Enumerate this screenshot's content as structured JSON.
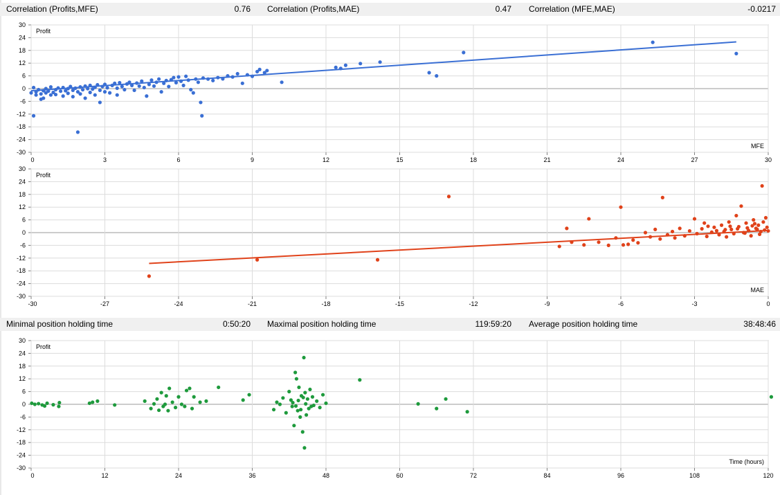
{
  "stats_top": [
    {
      "label": "Correlation (Profits,MFE)",
      "value": "0.76"
    },
    {
      "label": "Correlation (Profits,MAE)",
      "value": "0.47"
    },
    {
      "label": "Correlation (MFE,MAE)",
      "value": "-0.0217"
    }
  ],
  "stats_mid": [
    {
      "label": "Minimal position holding time",
      "value": "0:50:20"
    },
    {
      "label": "Maximal position holding time",
      "value": "119:59:20"
    },
    {
      "label": "Average position holding time",
      "value": "38:48:46"
    }
  ],
  "chart_data": [
    {
      "type": "scatter",
      "ylabel": "Profit",
      "xlabel": "MFE",
      "xlim": [
        0,
        30
      ],
      "ylim": [
        -30,
        30
      ],
      "xticks": [
        0,
        3,
        6,
        9,
        12,
        15,
        18,
        21,
        24,
        27,
        30
      ],
      "yticks": [
        30,
        24,
        18,
        12,
        6,
        0,
        -6,
        -12,
        -18,
        -24,
        -30
      ],
      "grid": true,
      "color": "#3a6fd4",
      "trendline": {
        "x1": 0,
        "y1": -1.0,
        "x2": 28.7,
        "y2": 22.0
      },
      "points": [
        [
          0.0,
          -2
        ],
        [
          0.1,
          -12.8
        ],
        [
          0.1,
          0.5
        ],
        [
          0.2,
          -1.5
        ],
        [
          0.2,
          -3
        ],
        [
          0.3,
          -0.5
        ],
        [
          0.4,
          -2.5
        ],
        [
          0.4,
          -5
        ],
        [
          0.5,
          -1
        ],
        [
          0.5,
          -4.5
        ],
        [
          0.6,
          0
        ],
        [
          0.6,
          -2
        ],
        [
          0.7,
          -1.2
        ],
        [
          0.8,
          -3
        ],
        [
          0.8,
          0.8
        ],
        [
          0.9,
          -1.8
        ],
        [
          1.0,
          -0.5
        ],
        [
          1.0,
          -2.8
        ],
        [
          1.1,
          0.3
        ],
        [
          1.2,
          -1.2
        ],
        [
          1.3,
          -3.5
        ],
        [
          1.3,
          0.5
        ],
        [
          1.4,
          -1
        ],
        [
          1.5,
          0
        ],
        [
          1.5,
          -2.2
        ],
        [
          1.6,
          1
        ],
        [
          1.7,
          -0.8
        ],
        [
          1.7,
          -3.8
        ],
        [
          1.8,
          0.2
        ],
        [
          1.9,
          -1.5
        ],
        [
          1.9,
          -20.5
        ],
        [
          2.0,
          0.8
        ],
        [
          2.0,
          -2.5
        ],
        [
          2.1,
          -0.5
        ],
        [
          2.2,
          1.2
        ],
        [
          2.2,
          -4.5
        ],
        [
          2.3,
          0
        ],
        [
          2.4,
          -1.8
        ],
        [
          2.4,
          1.5
        ],
        [
          2.5,
          -0.2
        ],
        [
          2.6,
          -3
        ],
        [
          2.6,
          0.6
        ],
        [
          2.7,
          1.8
        ],
        [
          2.8,
          -0.8
        ],
        [
          2.8,
          -6.5
        ],
        [
          2.9,
          1
        ],
        [
          3.0,
          -1.5
        ],
        [
          3.0,
          2
        ],
        [
          3.1,
          0.4
        ],
        [
          3.2,
          -2
        ],
        [
          3.3,
          1.5
        ],
        [
          3.4,
          2.5
        ],
        [
          3.5,
          0.2
        ],
        [
          3.5,
          -3
        ],
        [
          3.6,
          2.8
        ],
        [
          3.7,
          1
        ],
        [
          3.8,
          -0.5
        ],
        [
          3.9,
          2.2
        ],
        [
          4.0,
          3
        ],
        [
          4.1,
          1.5
        ],
        [
          4.2,
          -0.8
        ],
        [
          4.3,
          2.6
        ],
        [
          4.4,
          1.2
        ],
        [
          4.5,
          3.5
        ],
        [
          4.6,
          0.5
        ],
        [
          4.7,
          -3.5
        ],
        [
          4.8,
          2
        ],
        [
          4.9,
          4
        ],
        [
          5.0,
          1.2
        ],
        [
          5.1,
          3
        ],
        [
          5.2,
          4.5
        ],
        [
          5.3,
          -1.5
        ],
        [
          5.4,
          2.5
        ],
        [
          5.5,
          3.8
        ],
        [
          5.6,
          1
        ],
        [
          5.7,
          4.2
        ],
        [
          5.8,
          5.2
        ],
        [
          5.9,
          2.8
        ],
        [
          6.0,
          5.5
        ],
        [
          6.1,
          3.5
        ],
        [
          6.2,
          1.5
        ],
        [
          6.3,
          5.8
        ],
        [
          6.4,
          4
        ],
        [
          6.5,
          -0.5
        ],
        [
          6.6,
          -2
        ],
        [
          6.7,
          4.5
        ],
        [
          6.8,
          3
        ],
        [
          6.9,
          -6.5
        ],
        [
          6.95,
          -12.8
        ],
        [
          7.0,
          5
        ],
        [
          7.2,
          4.5
        ],
        [
          7.4,
          3.8
        ],
        [
          7.6,
          5.2
        ],
        [
          7.8,
          4.6
        ],
        [
          8.0,
          6
        ],
        [
          8.2,
          5.5
        ],
        [
          8.4,
          7
        ],
        [
          8.6,
          2.5
        ],
        [
          8.8,
          6.5
        ],
        [
          9.0,
          5.8
        ],
        [
          9.2,
          8
        ],
        [
          9.3,
          9
        ],
        [
          9.5,
          7.5
        ],
        [
          9.6,
          8.5
        ],
        [
          10.2,
          3
        ],
        [
          12.4,
          10
        ],
        [
          12.6,
          9.5
        ],
        [
          12.8,
          11
        ],
        [
          13.4,
          11.8
        ],
        [
          14.2,
          12.5
        ],
        [
          16.2,
          7.5
        ],
        [
          16.5,
          6
        ],
        [
          17.6,
          17
        ],
        [
          25.3,
          21.8
        ],
        [
          28.7,
          16.5
        ]
      ]
    },
    {
      "type": "scatter",
      "ylabel": "Profit",
      "xlabel": "MAE",
      "xlim": [
        -30,
        0
      ],
      "ylim": [
        -30,
        30
      ],
      "xticks": [
        -30,
        -27,
        -24,
        -21,
        -18,
        -15,
        -12,
        -9,
        -6,
        -3,
        0
      ],
      "yticks": [
        30,
        24,
        18,
        12,
        6,
        0,
        -6,
        -12,
        -18,
        -24,
        -30
      ],
      "grid": true,
      "color": "#e0421a",
      "trendline": {
        "x1": -25.2,
        "y1": -14.5,
        "x2": 0.0,
        "y2": 1.0
      },
      "points": [
        [
          -25.2,
          -20.5
        ],
        [
          -20.8,
          -12.8
        ],
        [
          -15.9,
          -12.8
        ],
        [
          -13.0,
          17
        ],
        [
          -8.5,
          -6.5
        ],
        [
          -8.2,
          2
        ],
        [
          -8.0,
          -4.5
        ],
        [
          -7.5,
          -5.8
        ],
        [
          -7.3,
          6.5
        ],
        [
          -6.9,
          -4.5
        ],
        [
          -6.5,
          -6
        ],
        [
          -6.2,
          -2.5
        ],
        [
          -6.0,
          12
        ],
        [
          -5.9,
          -5.8
        ],
        [
          -5.7,
          -5.5
        ],
        [
          -5.5,
          -3.5
        ],
        [
          -5.3,
          -4.8
        ],
        [
          -5.0,
          0
        ],
        [
          -4.8,
          -2
        ],
        [
          -4.6,
          1.5
        ],
        [
          -4.4,
          -3
        ],
        [
          -4.3,
          16.5
        ],
        [
          -4.1,
          -1
        ],
        [
          -3.9,
          0.5
        ],
        [
          -3.8,
          -2.5
        ],
        [
          -3.6,
          2
        ],
        [
          -3.4,
          -1.5
        ],
        [
          -3.2,
          0.8
        ],
        [
          -3.0,
          6.5
        ],
        [
          -2.9,
          -0.5
        ],
        [
          -2.7,
          1.8
        ],
        [
          -2.6,
          4.5
        ],
        [
          -2.5,
          -1.8
        ],
        [
          -2.3,
          0.2
        ],
        [
          -2.2,
          2.5
        ],
        [
          -2.0,
          -1
        ],
        [
          -1.9,
          3.5
        ],
        [
          -1.8,
          0.5
        ],
        [
          -1.7,
          -2
        ],
        [
          -1.6,
          5
        ],
        [
          -1.5,
          1.5
        ],
        [
          -1.4,
          -0.5
        ],
        [
          -1.3,
          8
        ],
        [
          -1.2,
          2.8
        ],
        [
          -1.1,
          12.5
        ],
        [
          -1.0,
          0
        ],
        [
          -0.9,
          4.5
        ],
        [
          -0.8,
          1
        ],
        [
          -0.7,
          -1.5
        ],
        [
          -0.6,
          6
        ],
        [
          -0.5,
          2
        ],
        [
          -0.4,
          3.5
        ],
        [
          -0.3,
          0.5
        ],
        [
          -0.25,
          22
        ],
        [
          -0.2,
          5
        ],
        [
          -0.15,
          1.2
        ],
        [
          -0.1,
          7
        ],
        [
          -0.05,
          2.5
        ],
        [
          0.0,
          0.8
        ],
        [
          -0.35,
          -0.8
        ],
        [
          -1.25,
          1.8
        ],
        [
          -2.1,
          0.9
        ],
        [
          -0.55,
          4.2
        ],
        [
          -0.85,
          2.2
        ],
        [
          -1.55,
          3
        ],
        [
          -0.45,
          1.5
        ],
        [
          -0.65,
          3.2
        ],
        [
          -0.95,
          -0.2
        ],
        [
          -1.75,
          1.4
        ],
        [
          -2.45,
          3
        ]
      ]
    },
    {
      "type": "scatter",
      "ylabel": "Profit",
      "xlabel": "Time (hours)",
      "xlim": [
        0,
        120
      ],
      "ylim": [
        -30,
        30
      ],
      "xticks": [
        0,
        12,
        24,
        36,
        48,
        60,
        72,
        84,
        96,
        108,
        120
      ],
      "yticks": [
        30,
        24,
        18,
        12,
        6,
        0,
        -6,
        -12,
        -18,
        -24,
        -30
      ],
      "grid": true,
      "color": "#1e9a3c",
      "trendline": null,
      "points": [
        [
          0.1,
          0.5
        ],
        [
          0.6,
          0
        ],
        [
          1.2,
          0.3
        ],
        [
          1.8,
          -0.3
        ],
        [
          2.2,
          -0.8
        ],
        [
          2.6,
          0.5
        ],
        [
          3.6,
          -0.2
        ],
        [
          4.5,
          -1
        ],
        [
          4.6,
          0.8
        ],
        [
          9.5,
          0.5
        ],
        [
          10.0,
          1
        ],
        [
          10.8,
          1.5
        ],
        [
          13.6,
          -0.3
        ],
        [
          18.5,
          1.5
        ],
        [
          19.5,
          -2
        ],
        [
          20.0,
          0.2
        ],
        [
          20.5,
          2.5
        ],
        [
          20.8,
          -2.8
        ],
        [
          21.2,
          5.5
        ],
        [
          21.5,
          -1
        ],
        [
          21.8,
          0
        ],
        [
          22.0,
          4
        ],
        [
          22.3,
          -3
        ],
        [
          22.5,
          7.5
        ],
        [
          23.0,
          1
        ],
        [
          23.5,
          -1.5
        ],
        [
          24.0,
          3.5
        ],
        [
          24.5,
          0
        ],
        [
          25.0,
          -1
        ],
        [
          25.3,
          6.5
        ],
        [
          25.8,
          7.5
        ],
        [
          26.2,
          -2
        ],
        [
          26.5,
          3.5
        ],
        [
          27.5,
          1
        ],
        [
          28.5,
          1.5
        ],
        [
          30.5,
          8
        ],
        [
          34.5,
          2
        ],
        [
          35.5,
          4.5
        ],
        [
          39.5,
          -2.5
        ],
        [
          40.0,
          1
        ],
        [
          40.5,
          0
        ],
        [
          41.0,
          3
        ],
        [
          41.5,
          -4
        ],
        [
          42.0,
          6
        ],
        [
          42.3,
          2
        ],
        [
          42.5,
          -1
        ],
        [
          42.8,
          -10
        ],
        [
          43.0,
          15
        ],
        [
          43.2,
          12
        ],
        [
          43.4,
          -3
        ],
        [
          43.6,
          8
        ],
        [
          43.8,
          -6
        ],
        [
          44.0,
          4
        ],
        [
          44.2,
          -13
        ],
        [
          44.4,
          22
        ],
        [
          44.5,
          -20.5
        ],
        [
          44.6,
          5.5
        ],
        [
          44.8,
          -5
        ],
        [
          45.0,
          2.5
        ],
        [
          45.2,
          -2
        ],
        [
          45.4,
          7
        ],
        [
          45.6,
          -1
        ],
        [
          45.8,
          3.5
        ],
        [
          46.0,
          -0.5
        ],
        [
          46.5,
          1.5
        ],
        [
          47.0,
          -1.5
        ],
        [
          47.5,
          4.5
        ],
        [
          48.0,
          0.5
        ],
        [
          53.5,
          11.5
        ],
        [
          63.0,
          0.2
        ],
        [
          66.0,
          -2
        ],
        [
          67.5,
          2.5
        ],
        [
          71.0,
          -3.5
        ],
        [
          120.5,
          3.5
        ],
        [
          42.6,
          0.8
        ],
        [
          43.1,
          -0.8
        ],
        [
          43.5,
          1.8
        ],
        [
          43.9,
          -2.5
        ],
        [
          44.3,
          3.2
        ],
        [
          44.7,
          0.2
        ]
      ]
    }
  ]
}
